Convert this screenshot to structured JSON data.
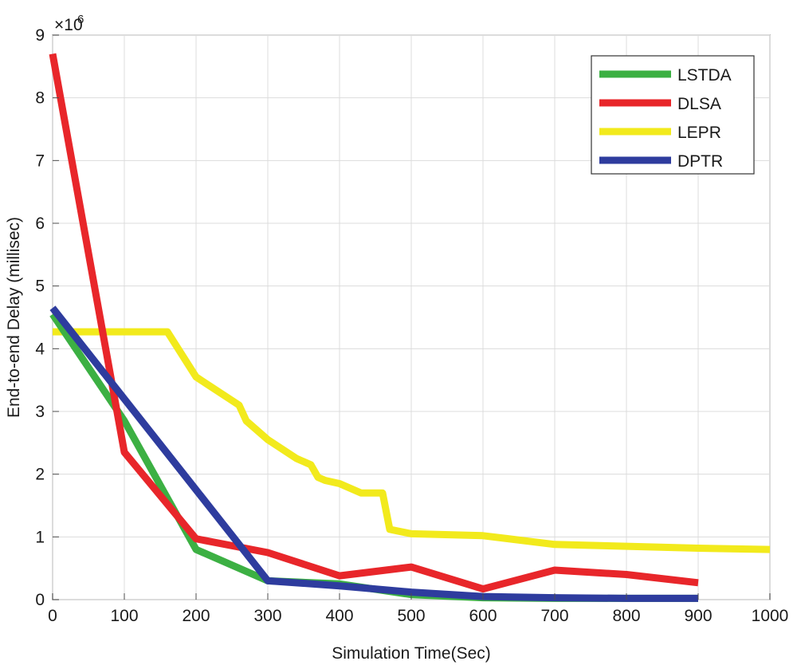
{
  "chart_data": {
    "type": "line",
    "title": "",
    "xlabel": "Simulation Time(Sec)",
    "ylabel": "End-to-end Delay (millisec)",
    "y_multiplier_label": "×10",
    "y_multiplier_exponent": "6",
    "xlim": [
      0,
      1000
    ],
    "ylim": [
      0,
      9
    ],
    "xticks": [
      0,
      100,
      200,
      300,
      400,
      500,
      600,
      700,
      800,
      900,
      1000
    ],
    "yticks": [
      0,
      1,
      2,
      3,
      4,
      5,
      6,
      7,
      8,
      9
    ],
    "grid": true,
    "legend_position": "top-right",
    "series": [
      {
        "name": "LSTDA",
        "color": "#3cb043",
        "x": [
          0,
          100,
          200,
          300,
          400,
          500,
          600,
          700,
          800,
          900
        ],
        "y": [
          4.55,
          2.85,
          0.8,
          0.3,
          0.25,
          0.08,
          0.03,
          0.02,
          0.02,
          0.02
        ]
      },
      {
        "name": "DLSA",
        "color": "#e8262a",
        "x": [
          0,
          100,
          200,
          300,
          400,
          500,
          600,
          700,
          800,
          900
        ],
        "y": [
          8.7,
          2.35,
          0.97,
          0.75,
          0.38,
          0.52,
          0.17,
          0.47,
          0.4,
          0.27
        ]
      },
      {
        "name": "LEPR",
        "color": "#f2ea1c",
        "x": [
          0,
          100,
          160,
          175,
          200,
          260,
          270,
          300,
          340,
          360,
          370,
          380,
          400,
          430,
          460,
          470,
          500,
          600,
          700,
          800,
          900,
          1000
        ],
        "y": [
          4.27,
          4.27,
          4.27,
          4.0,
          3.55,
          3.1,
          2.85,
          2.55,
          2.25,
          2.15,
          1.95,
          1.9,
          1.85,
          1.7,
          1.7,
          1.12,
          1.05,
          1.02,
          0.88,
          0.85,
          0.82,
          0.8
        ]
      },
      {
        "name": "DPTR",
        "color": "#2e3c9e",
        "x": [
          0,
          100,
          200,
          300,
          400,
          500,
          600,
          700,
          800,
          900
        ],
        "y": [
          4.65,
          3.2,
          1.75,
          0.3,
          0.22,
          0.12,
          0.05,
          0.03,
          0.02,
          0.02
        ]
      }
    ]
  }
}
